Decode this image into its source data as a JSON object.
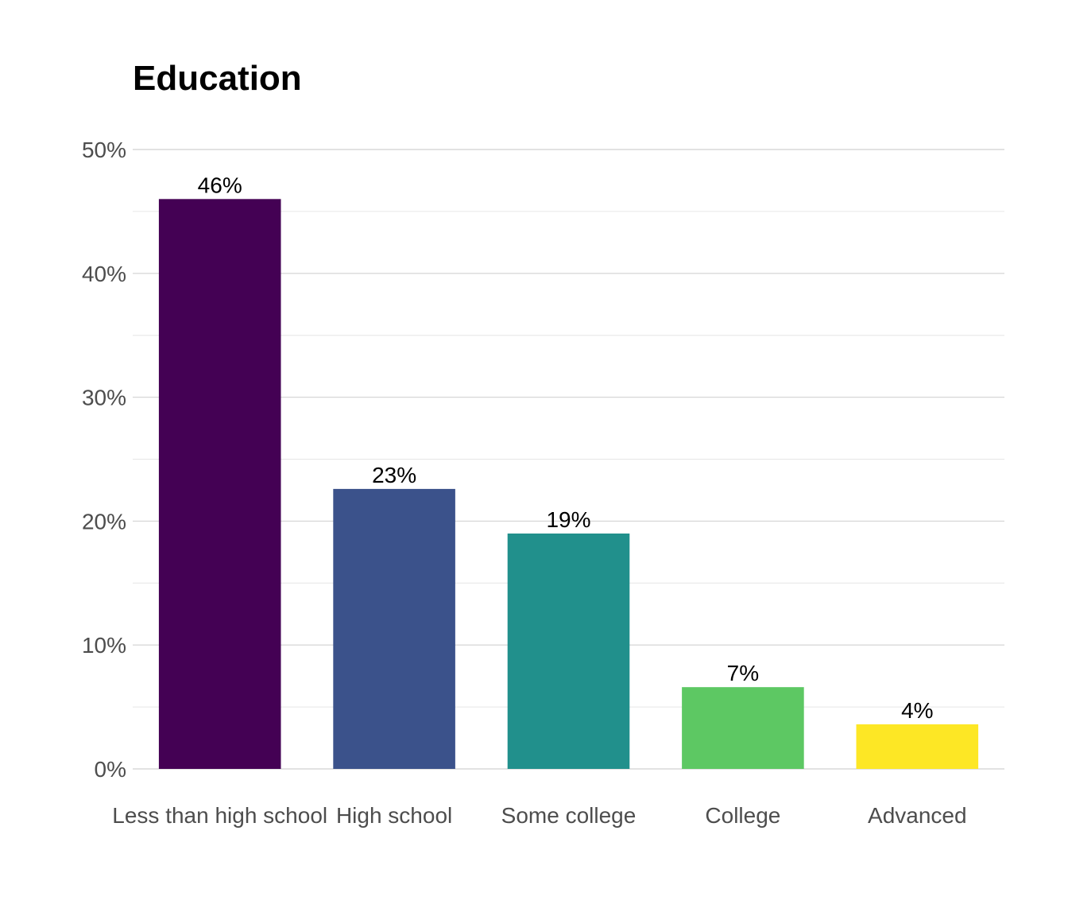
{
  "chart_data": {
    "type": "bar",
    "title": "Education",
    "xlabel": "",
    "ylabel": "",
    "categories": [
      "Less than high school",
      "High school",
      "Some college",
      "College",
      "Advanced"
    ],
    "values": [
      46.0,
      22.6,
      19.0,
      6.6,
      3.6
    ],
    "data_labels": [
      "46%",
      "23%",
      "19%",
      "7%",
      "4%"
    ],
    "colors": [
      "#440154",
      "#3b528b",
      "#21908c",
      "#5dc863",
      "#fde725"
    ],
    "ylim": [
      0,
      50
    ],
    "y_ticks": [
      0,
      10,
      20,
      30,
      40,
      50
    ],
    "y_tick_labels": [
      "0%",
      "10%",
      "20%",
      "30%",
      "40%",
      "50%"
    ],
    "grid": true,
    "legend": "none"
  }
}
